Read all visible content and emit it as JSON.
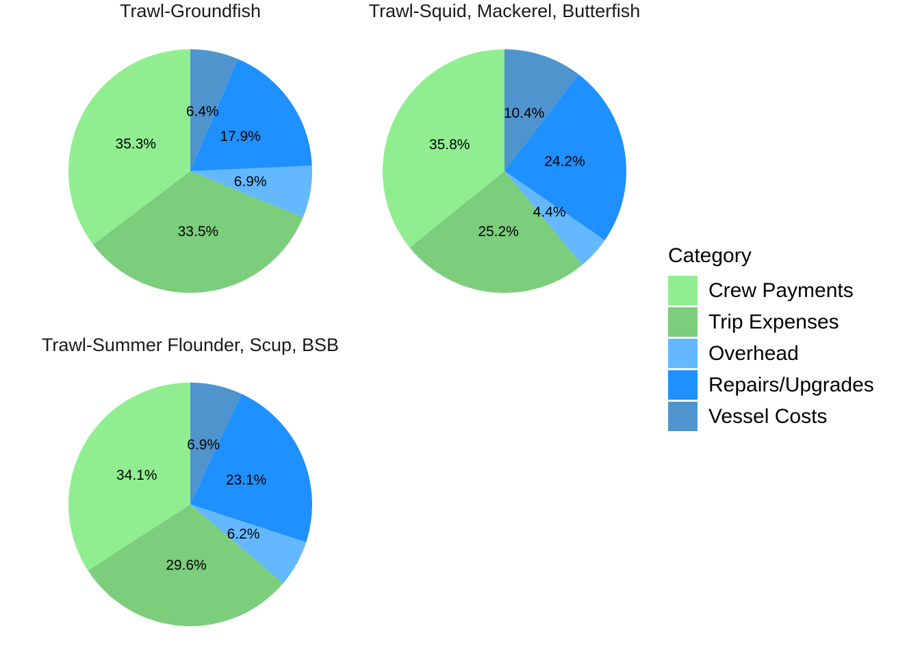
{
  "chart_data": {
    "type": "pie",
    "categories": [
      "Crew Payments",
      "Trip Expenses",
      "Overhead",
      "Repairs/Upgrades",
      "Vessel Costs"
    ],
    "colors": {
      "Crew Payments": "#90EE90",
      "Trip Expenses": "#7CCD7C",
      "Overhead": "#63B8FF",
      "Repairs/Upgrades": "#1E90FF",
      "Vessel Costs": "#4F94CD"
    },
    "slice_order_clockwise_from_top": [
      "Vessel Costs",
      "Repairs/Upgrades",
      "Overhead",
      "Trip Expenses",
      "Crew Payments"
    ],
    "legend": {
      "title": "Category",
      "position": "right",
      "entries": [
        "Crew Payments",
        "Trip Expenses",
        "Overhead",
        "Repairs/Upgrades",
        "Vessel Costs"
      ]
    },
    "panels": [
      {
        "title": "Trawl-Groundfish",
        "values": {
          "Crew Payments": 35.3,
          "Trip Expenses": 33.5,
          "Overhead": 6.9,
          "Repairs/Upgrades": 17.9,
          "Vessel Costs": 6.4
        },
        "labels": {
          "Crew Payments": "35.3%",
          "Trip Expenses": "33.5%",
          "Overhead": "6.9%",
          "Repairs/Upgrades": "17.9%",
          "Vessel Costs": "6.4%"
        }
      },
      {
        "title": "Trawl-Squid, Mackerel, Butterfish",
        "values": {
          "Crew Payments": 35.8,
          "Trip Expenses": 25.2,
          "Overhead": 4.4,
          "Repairs/Upgrades": 24.2,
          "Vessel Costs": 10.4
        },
        "labels": {
          "Crew Payments": "35.8%",
          "Trip Expenses": "25.2%",
          "Overhead": "4.4%",
          "Repairs/Upgrades": "24.2%",
          "Vessel Costs": "10.4%"
        }
      },
      {
        "title": "Trawl-Summer Flounder, Scup, BSB",
        "values": {
          "Crew Payments": 34.1,
          "Trip Expenses": 29.6,
          "Overhead": 6.2,
          "Repairs/Upgrades": 23.1,
          "Vessel Costs": 6.9
        },
        "labels": {
          "Crew Payments": "34.1%",
          "Trip Expenses": "29.6%",
          "Overhead": "6.2%",
          "Repairs/Upgrades": "23.1%",
          "Vessel Costs": "6.9%"
        }
      }
    ]
  }
}
